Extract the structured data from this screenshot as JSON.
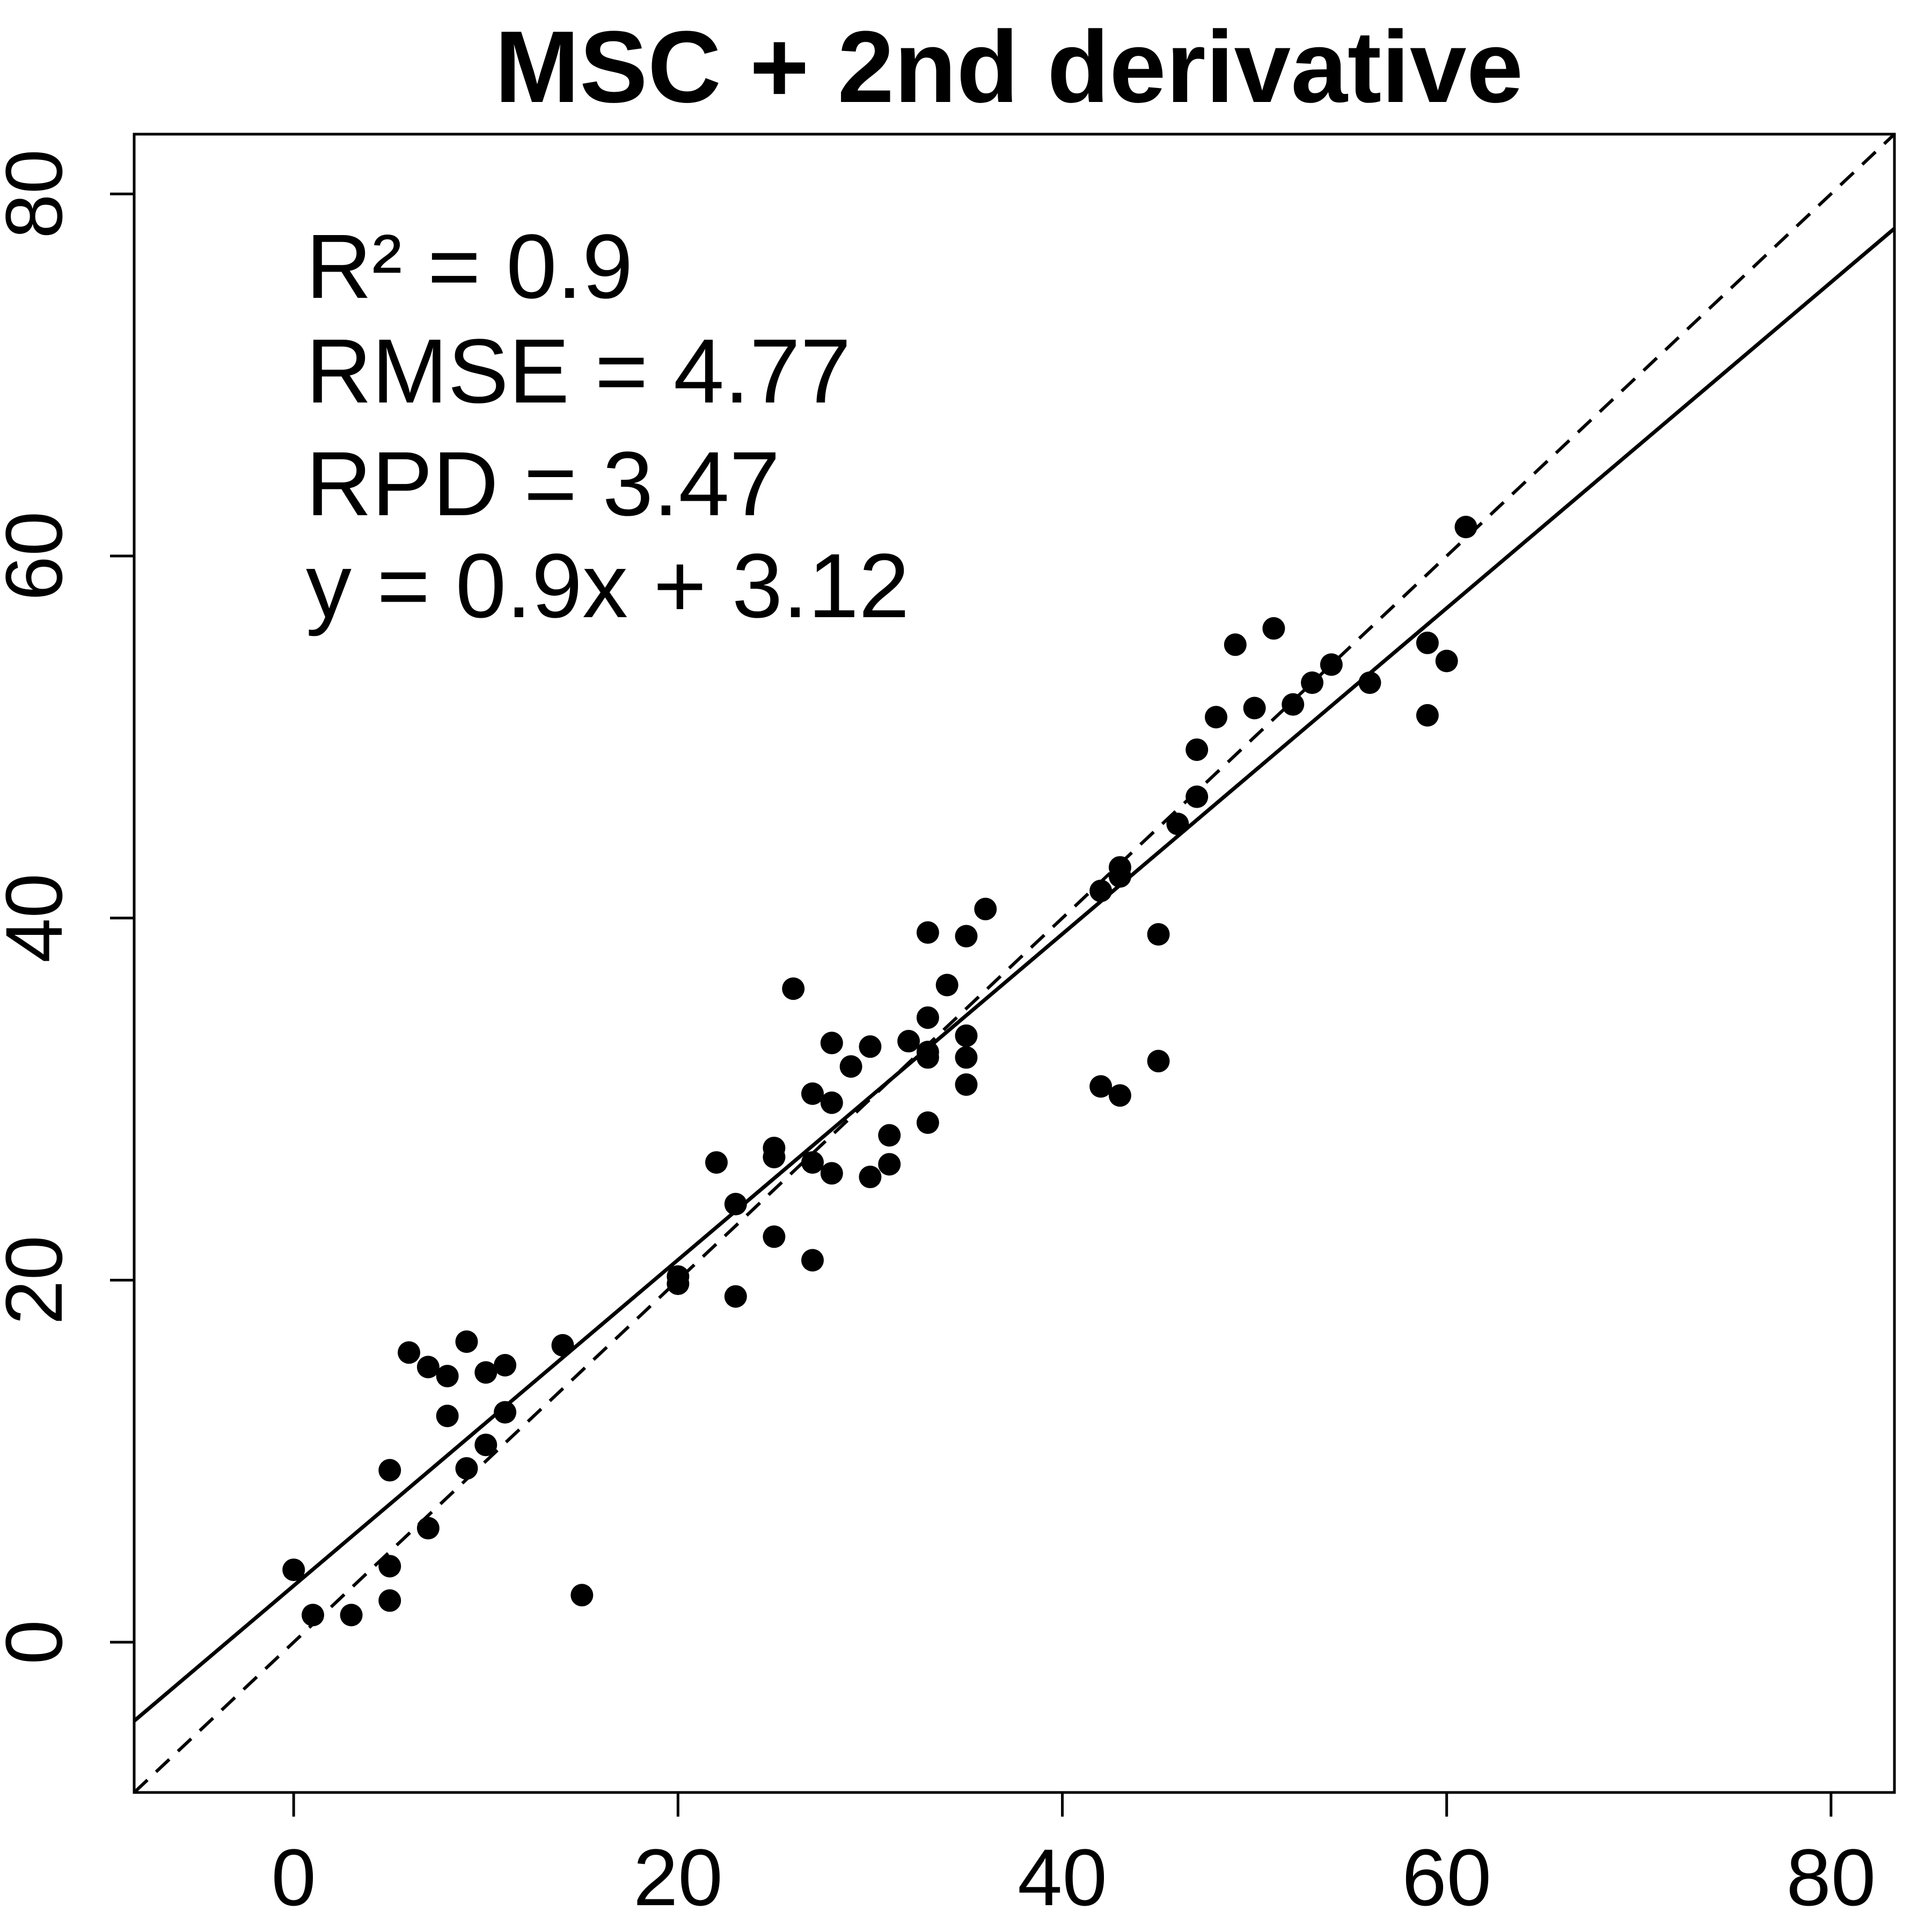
{
  "chart_data": {
    "type": "scatter",
    "title": "MSC + 2nd derivative",
    "xlabel": "",
    "ylabel": "",
    "xlim": [
      -8.3,
      83.3
    ],
    "ylim": [
      -8.3,
      83.3
    ],
    "x_ticks": [
      0,
      20,
      40,
      60,
      80
    ],
    "y_ticks": [
      0,
      20,
      40,
      60,
      80
    ],
    "x_tick_labels": [
      "0",
      "20",
      "40",
      "60",
      "80"
    ],
    "y_tick_labels": [
      "0",
      "20",
      "40",
      "60",
      "80"
    ],
    "grid": false,
    "legend": "none",
    "annotations": [
      {
        "id": "r2",
        "text": "R² = 0.9"
      },
      {
        "id": "rmse",
        "text": "RMSE = 4.77"
      },
      {
        "id": "rpd",
        "text": "RPD = 3.47"
      },
      {
        "id": "equation",
        "text": "y = 0.9x + 3.12"
      }
    ],
    "fit_line": {
      "slope": 0.9,
      "intercept": 3.12,
      "style": "solid"
    },
    "identity_line": {
      "slope": 1,
      "intercept": 0,
      "style": "dashed"
    },
    "points": [
      [
        0,
        4.0
      ],
      [
        1,
        1.5
      ],
      [
        3,
        1.5
      ],
      [
        5,
        2.3
      ],
      [
        5,
        4.2
      ],
      [
        5,
        9.5
      ],
      [
        6,
        16.0
      ],
      [
        7,
        6.3
      ],
      [
        7,
        15.2
      ],
      [
        8,
        12.5
      ],
      [
        8,
        14.7
      ],
      [
        9,
        9.6
      ],
      [
        9,
        16.6
      ],
      [
        10,
        10.9
      ],
      [
        10,
        14.9
      ],
      [
        11,
        12.7
      ],
      [
        11,
        15.3
      ],
      [
        14,
        16.4
      ],
      [
        15,
        2.6
      ],
      [
        20,
        19.8
      ],
      [
        20,
        20.2
      ],
      [
        22,
        26.5
      ],
      [
        23,
        19.1
      ],
      [
        23,
        24.2
      ],
      [
        25,
        22.4
      ],
      [
        25,
        26.8
      ],
      [
        25,
        27.3
      ],
      [
        26,
        36.1
      ],
      [
        27,
        21.1
      ],
      [
        27,
        26.5
      ],
      [
        27,
        30.3
      ],
      [
        28,
        25.9
      ],
      [
        28,
        29.8
      ],
      [
        28,
        33.1
      ],
      [
        29,
        31.8
      ],
      [
        30,
        25.7
      ],
      [
        30,
        32.9
      ],
      [
        31,
        26.4
      ],
      [
        31,
        28.0
      ],
      [
        32,
        33.2
      ],
      [
        33,
        28.7
      ],
      [
        33,
        32.3
      ],
      [
        33,
        32.6
      ],
      [
        33,
        34.5
      ],
      [
        33,
        39.2
      ],
      [
        34,
        36.3
      ],
      [
        35,
        30.8
      ],
      [
        35,
        32.3
      ],
      [
        35,
        33.5
      ],
      [
        35,
        39.0
      ],
      [
        36,
        40.5
      ],
      [
        42,
        30.7
      ],
      [
        42,
        41.5
      ],
      [
        43,
        30.2
      ],
      [
        43,
        42.3
      ],
      [
        43,
        42.8
      ],
      [
        45,
        32.1
      ],
      [
        45,
        39.1
      ],
      [
        46,
        45.2
      ],
      [
        47,
        46.7
      ],
      [
        47,
        49.3
      ],
      [
        48,
        51.1
      ],
      [
        49,
        55.1
      ],
      [
        50,
        51.6
      ],
      [
        51,
        56.0
      ],
      [
        52,
        51.8
      ],
      [
        53,
        53.0
      ],
      [
        54,
        54.0
      ],
      [
        56,
        53.0
      ],
      [
        59,
        51.2
      ],
      [
        59,
        55.2
      ],
      [
        60,
        54.2
      ],
      [
        61,
        61.6
      ]
    ]
  }
}
